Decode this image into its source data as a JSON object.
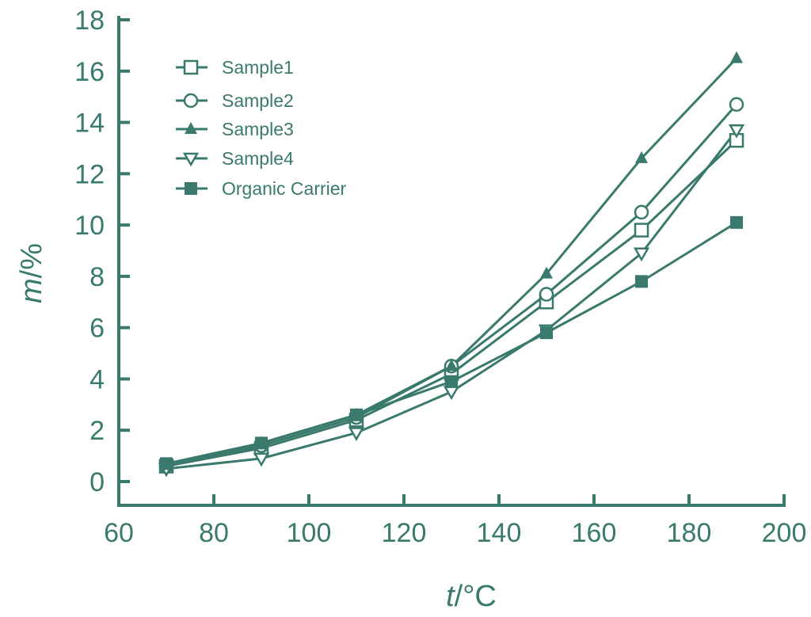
{
  "chart_data": {
    "type": "line",
    "title": "",
    "xlabel_italic": "t",
    "xlabel_unit": "/°C",
    "ylabel_italic": "m",
    "ylabel_unit": "/%",
    "xlim": [
      60,
      200
    ],
    "ylim": [
      0,
      18
    ],
    "xticks": [
      60,
      80,
      100,
      120,
      140,
      160,
      180,
      200
    ],
    "yticks": [
      0,
      2,
      4,
      6,
      8,
      10,
      12,
      14,
      16,
      18
    ],
    "grid": false,
    "legend_placement": "top-left",
    "color": "#3a7a6c",
    "x": [
      70,
      90,
      110,
      130,
      150,
      170,
      190
    ],
    "series": [
      {
        "name": "Sample1",
        "marker": "open-square",
        "values": [
          0.6,
          1.3,
          2.4,
          4.2,
          7.0,
          9.8,
          13.3
        ]
      },
      {
        "name": "Sample2",
        "marker": "open-circle",
        "values": [
          0.6,
          1.4,
          2.5,
          4.5,
          7.3,
          10.5,
          14.7
        ]
      },
      {
        "name": "Sample3",
        "marker": "filled-triangle-up",
        "values": [
          0.6,
          1.5,
          2.6,
          4.5,
          8.1,
          12.6,
          16.5
        ]
      },
      {
        "name": "Sample4",
        "marker": "open-triangle-down",
        "values": [
          0.5,
          0.9,
          1.9,
          3.5,
          5.9,
          8.9,
          13.7
        ]
      },
      {
        "name": "Organic Carrier",
        "marker": "filled-square",
        "values": [
          0.7,
          1.5,
          2.6,
          3.9,
          5.8,
          7.8,
          10.1
        ]
      }
    ]
  }
}
